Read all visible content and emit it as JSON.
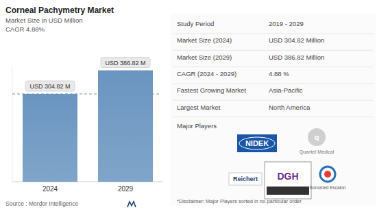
{
  "chart_data": {
    "type": "bar",
    "title": "Corneal Pachymetry Market",
    "subtitle": "Market Size in USD Million",
    "annotations": [
      "CAGR 4.88%"
    ],
    "categories": [
      "2024",
      "2029"
    ],
    "values": [
      304.82,
      386.82
    ],
    "value_labels": [
      "USD 304.82 M",
      "USD 386.82 M"
    ],
    "data_labels": true,
    "color": "#6a95c0",
    "ylim": [
      0,
      400
    ],
    "tick_labels": "x",
    "grid": false,
    "source": "Source : Mordor Intelligence"
  },
  "panel": {
    "rows": [
      {
        "label": "Study Period",
        "value": "2019 - 2029"
      },
      {
        "label": "Market Size (2024)",
        "value": "USD 304.82 Million"
      },
      {
        "label": "Market Size (2029)",
        "value": "USD 386.82 Million"
      },
      {
        "label": "CAGR (2024 - 2029)",
        "value": "4.88 %"
      },
      {
        "label": "Fastest Growing Market",
        "value": "Asia-Pacific"
      },
      {
        "label": "Largest Market",
        "value": "North America"
      }
    ],
    "players_title": "Major Players",
    "players": [
      "NIDEK",
      "Quantel Medical",
      "Reichert",
      "DGH",
      "Sonomed Escalon"
    ],
    "disclaimer": "*Disclaimer: Major Players sorted in no particular order"
  }
}
